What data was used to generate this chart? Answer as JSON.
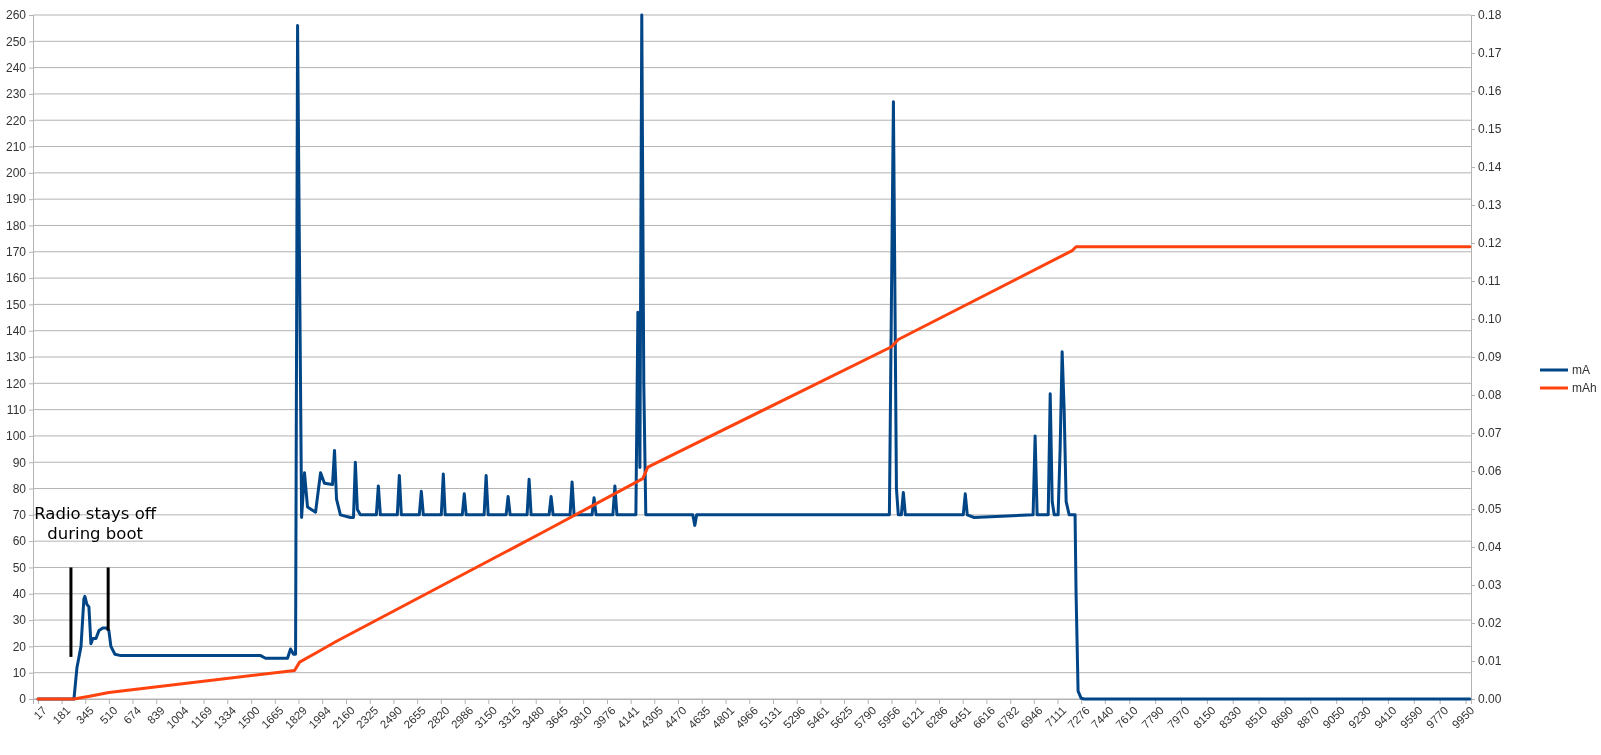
{
  "chart_data": {
    "type": "line",
    "x": [
      17,
      267,
      288,
      316,
      336,
      343,
      357,
      371,
      385,
      399,
      420,
      441,
      468,
      496,
      510,
      524,
      552,
      593,
      1010,
      1566,
      1600,
      1753,
      1774,
      1795,
      1809,
      1823,
      1851,
      1871,
      1892,
      1948,
      1983,
      2010,
      2066,
      2080,
      2094,
      2121,
      2191,
      2212,
      2225,
      2239,
      2260,
      2371,
      2385,
      2399,
      2517,
      2531,
      2545,
      2670,
      2684,
      2698,
      2823,
      2837,
      2850,
      2969,
      2983,
      2996,
      3121,
      3135,
      3149,
      3274,
      3288,
      3302,
      3420,
      3434,
      3448,
      3573,
      3587,
      3601,
      3719,
      3733,
      3747,
      3872,
      3886,
      3900,
      4017,
      4031,
      4045,
      4177,
      4191,
      4205,
      4218,
      4232,
      4246,
      4573,
      4587,
      4600,
      5177,
      5941,
      5955,
      5969,
      5990,
      6003,
      6024,
      6038,
      6052,
      6455,
      6469,
      6483,
      6531,
      6941,
      6955,
      6969,
      7046,
      7060,
      7074,
      7088,
      7115,
      7129,
      7143,
      7157,
      7171,
      7192,
      7233,
      7240,
      7254,
      7275,
      7296,
      9980
    ],
    "series": [
      {
        "name": "mA",
        "color": "#004586",
        "values": [
          0,
          0,
          12,
          20,
          38,
          39,
          36,
          35,
          21,
          23,
          23,
          26,
          27,
          27,
          26,
          20,
          17,
          16.5,
          16.5,
          16.5,
          15.5,
          15.5,
          19,
          17,
          17,
          256,
          69,
          86,
          73,
          71,
          86,
          82,
          81.5,
          94.5,
          76,
          70,
          69,
          69,
          90,
          72,
          70,
          70,
          81,
          70,
          70,
          85,
          70,
          70,
          79,
          70,
          70,
          85.5,
          70,
          70,
          78,
          70,
          70,
          85,
          70,
          70,
          77,
          70,
          70,
          83.5,
          70,
          70,
          77,
          70,
          70,
          82.5,
          70,
          70,
          76.5,
          70,
          70,
          81,
          70,
          70,
          147,
          88,
          260,
          120,
          70,
          70,
          66,
          70,
          70,
          70,
          150,
          227,
          80,
          70,
          70,
          78.5,
          70,
          70,
          78,
          70,
          69,
          70,
          100,
          70,
          70,
          116,
          75,
          70,
          70,
          95,
          132,
          110,
          75,
          70,
          70,
          40,
          3,
          0.3,
          0,
          0
        ]
      },
      {
        "name": "mAh",
        "color": "#ff420e",
        "axis": "y2",
        "x": [
          17,
          267,
          385,
          510,
          1802,
          1837,
          1969,
          2094,
          3566,
          4225,
          4260,
          5956,
          6003,
          7213,
          7240,
          9980
        ],
        "values": [
          0,
          0,
          0.0008,
          0.0017,
          0.0075,
          0.0097,
          0.0125,
          0.0152,
          0.0446,
          0.058,
          0.061,
          0.0927,
          0.0946,
          0.118,
          0.119,
          0.119
        ]
      }
    ],
    "xlim": [
      -18,
      9988
    ],
    "xticks": [
      17,
      181,
      345,
      510,
      674,
      839,
      1004,
      1169,
      1334,
      1500,
      1665,
      1829,
      1994,
      2160,
      2325,
      2490,
      2655,
      2820,
      2986,
      3150,
      3315,
      3480,
      3645,
      3810,
      3976,
      4141,
      4305,
      4470,
      4635,
      4801,
      4966,
      5131,
      5296,
      5461,
      5625,
      5790,
      5956,
      6121,
      6286,
      6451,
      6616,
      6782,
      6946,
      7111,
      7276,
      7440,
      7610,
      7790,
      7970,
      8150,
      8330,
      8510,
      8690,
      8870,
      9050,
      9230,
      9410,
      9590,
      9770,
      9950
    ],
    "ylim": [
      0,
      260
    ],
    "yticks": [
      0,
      10,
      20,
      30,
      40,
      50,
      60,
      70,
      80,
      90,
      100,
      110,
      120,
      130,
      140,
      150,
      160,
      170,
      180,
      190,
      200,
      210,
      220,
      230,
      240,
      250,
      260
    ],
    "y2lim": [
      0,
      0.18
    ],
    "y2ticks": [
      {
        "value": 0,
        "label": "0.00"
      },
      {
        "value": 0.01,
        "label": "0.01"
      },
      {
        "value": 0.02,
        "label": "0.02"
      },
      {
        "value": 0.03,
        "label": "0.03"
      },
      {
        "value": 0.04,
        "label": "0.04"
      },
      {
        "value": 0.05,
        "label": "0.05"
      },
      {
        "value": 0.06,
        "label": "0.06"
      },
      {
        "value": 0.07,
        "label": "0.07"
      },
      {
        "value": 0.08,
        "label": "0.08"
      },
      {
        "value": 0.09,
        "label": "0.09"
      },
      {
        "value": 0.1,
        "label": "0.10"
      },
      {
        "value": 0.11,
        "label": "0.11"
      },
      {
        "value": 0.12,
        "label": "0.12"
      },
      {
        "value": 0.13,
        "label": "0.13"
      },
      {
        "value": 0.14,
        "label": "0.14"
      },
      {
        "value": 0.15,
        "label": "0.15"
      },
      {
        "value": 0.16,
        "label": "0.16"
      },
      {
        "value": 0.17,
        "label": "0.17"
      },
      {
        "value": 0.18,
        "label": "0.18"
      }
    ],
    "grid": "y",
    "legend": "right",
    "line_style": "solid",
    "marker": "none",
    "annotations": [
      "Radio stays off\nduring boot"
    ]
  }
}
